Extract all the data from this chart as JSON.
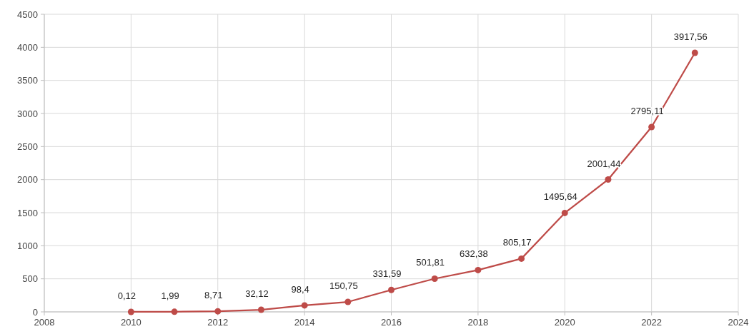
{
  "chart_data": {
    "type": "line",
    "x": [
      2010,
      2011,
      2012,
      2013,
      2014,
      2015,
      2016,
      2017,
      2018,
      2019,
      2020,
      2021,
      2022,
      2023
    ],
    "series": [
      {
        "color": "#be4b48",
        "values": [
          0.12,
          1.99,
          8.71,
          32.12,
          98.4,
          150.75,
          331.59,
          501.81,
          632.38,
          805.17,
          1495.64,
          2001.44,
          2795.11,
          3917.56
        ],
        "value_labels": [
          "0,12",
          "1,99",
          "8,71",
          "32,12",
          "98,4",
          "150,75",
          "331,59",
          "501,81",
          "632,38",
          "805,17",
          "1495,64",
          "2001,44",
          "2795,11",
          "3917,56"
        ]
      }
    ],
    "xlim": [
      2008,
      2024
    ],
    "xticks": [
      2008,
      2010,
      2012,
      2014,
      2016,
      2018,
      2020,
      2022,
      2024
    ],
    "ylim": [
      0,
      4500
    ],
    "yticks": [
      0,
      500,
      1000,
      1500,
      2000,
      2500,
      3000,
      3500,
      4000,
      4500
    ],
    "grid": true,
    "marker": "circle",
    "line_style": "solid"
  }
}
